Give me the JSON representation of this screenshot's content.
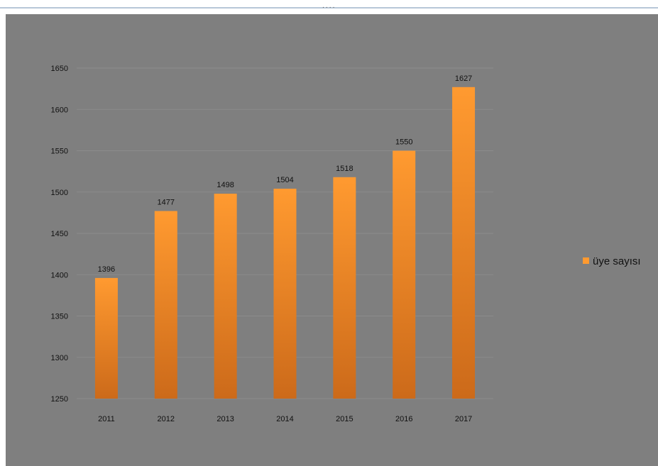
{
  "window": {
    "grip_label": "...."
  },
  "chart_data": {
    "type": "bar",
    "categories": [
      "2011",
      "2012",
      "2013",
      "2014",
      "2015",
      "2016",
      "2017"
    ],
    "series": [
      {
        "name": "üye sayısı",
        "values": [
          1396,
          1477,
          1498,
          1504,
          1518,
          1550,
          1627
        ]
      }
    ],
    "data_labels": [
      "1396",
      "1477",
      "1498",
      "1504",
      "1518",
      "1550",
      "1627"
    ],
    "yticks": [
      1250,
      1300,
      1350,
      1400,
      1450,
      1500,
      1550,
      1600,
      1650
    ],
    "ylim": [
      1250,
      1650
    ],
    "grid": true,
    "legend_position": "right",
    "colors": {
      "bar_top": "#ff9a30",
      "bar_bottom": "#cc6a1a",
      "background": "#7f7f7f",
      "gridline": "#8c8c8c"
    }
  }
}
